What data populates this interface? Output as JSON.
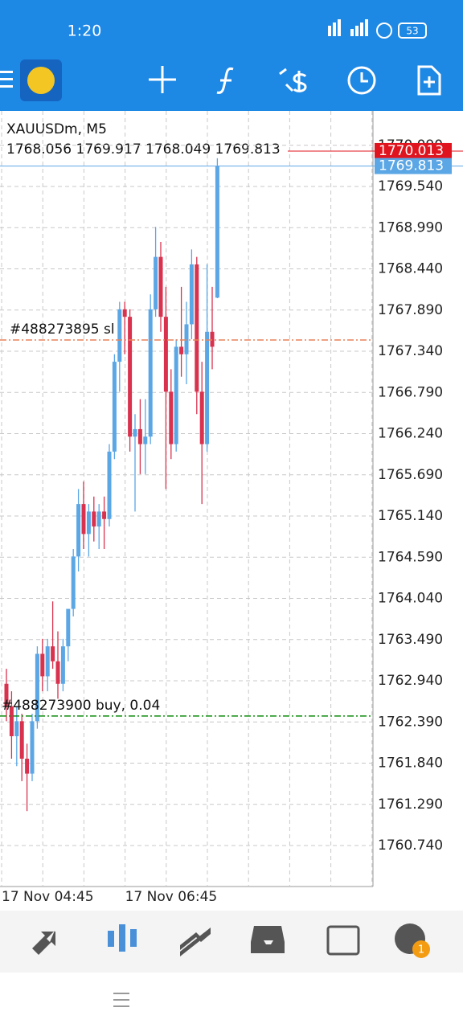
{
  "status_bar": {
    "time": "1:20",
    "battery": "53"
  },
  "chart_data": {
    "type": "candlestick",
    "title": "XAUUSDm, M5",
    "ohlc_text": "1768.056 1769.917 1768.049 1769.813",
    "categories": [
      "17 Nov 04:45",
      null,
      null,
      null,
      null,
      null,
      null,
      null,
      null,
      null,
      null,
      null,
      null,
      null,
      null,
      null,
      null,
      null,
      null,
      null,
      null,
      null,
      null,
      null,
      "17 Nov 06:45",
      null,
      null,
      null,
      null,
      null,
      null,
      null,
      null,
      null,
      null,
      null,
      null,
      null,
      null,
      null,
      null,
      null
    ],
    "open": [
      1762.9,
      1762.6,
      1762.2,
      1762.4,
      1761.9,
      1761.7,
      1762.4,
      1763.3,
      1763.0,
      1763.4,
      1763.2,
      1762.9,
      1763.4,
      1763.9,
      1764.6,
      1765.3,
      1764.9,
      1765.2,
      1765.0,
      1765.2,
      1765.1,
      1766.0,
      1767.2,
      1767.9,
      1767.8,
      1766.2,
      1766.3,
      1766.1,
      1766.2,
      1767.9,
      1768.6,
      1767.8,
      1766.8,
      1766.1,
      1767.4,
      1767.3,
      1767.7,
      1768.5,
      1766.8,
      1766.1,
      1767.6,
      1768.056
    ],
    "high": [
      1763.1,
      1762.8,
      1762.6,
      1762.5,
      1762.1,
      1762.5,
      1763.4,
      1763.5,
      1763.5,
      1764.0,
      1763.6,
      1763.5,
      1763.9,
      1764.7,
      1765.5,
      1765.6,
      1765.3,
      1765.4,
      1765.3,
      1765.4,
      1766.1,
      1767.3,
      1768.0,
      1768.0,
      1767.9,
      1766.5,
      1766.7,
      1766.7,
      1768.1,
      1769.0,
      1768.8,
      1768.2,
      1767.1,
      1767.5,
      1768.2,
      1768.0,
      1768.7,
      1768.6,
      1767.2,
      1768.5,
      1768.2,
      1769.917
    ],
    "low": [
      1762.4,
      1761.9,
      1761.8,
      1761.6,
      1761.2,
      1761.6,
      1762.3,
      1762.8,
      1762.8,
      1763.1,
      1762.7,
      1762.8,
      1763.2,
      1763.8,
      1764.4,
      1764.7,
      1764.6,
      1764.8,
      1764.7,
      1764.7,
      1765.0,
      1765.9,
      1766.8,
      1767.3,
      1766.0,
      1765.2,
      1765.7,
      1765.7,
      1766.1,
      1767.8,
      1767.6,
      1765.5,
      1765.9,
      1766.0,
      1767.0,
      1766.9,
      1767.5,
      1766.5,
      1765.3,
      1766.0,
      1767.1,
      1768.049
    ],
    "close": [
      1762.6,
      1762.2,
      1762.4,
      1761.9,
      1761.7,
      1762.4,
      1763.3,
      1763.0,
      1763.4,
      1763.2,
      1762.9,
      1763.4,
      1763.9,
      1764.6,
      1765.3,
      1764.9,
      1765.2,
      1765.0,
      1765.2,
      1765.1,
      1766.0,
      1767.2,
      1767.9,
      1767.8,
      1766.2,
      1766.3,
      1766.1,
      1766.2,
      1767.9,
      1768.6,
      1767.8,
      1766.8,
      1766.1,
      1767.4,
      1767.3,
      1767.7,
      1768.5,
      1766.8,
      1766.1,
      1767.6,
      1767.4,
      1769.813
    ],
    "up_color": "#5ba6e5",
    "down_color": "#d8324e",
    "ylim": [
      1760.193,
      1770.549
    ],
    "yticks": [
      {
        "value": 1770.09,
        "label": "1770.090"
      },
      {
        "value": 1769.54,
        "label": "1769.540"
      },
      {
        "value": 1768.99,
        "label": "1768.990"
      },
      {
        "value": 1768.44,
        "label": "1768.440"
      },
      {
        "value": 1767.89,
        "label": "1767.890"
      },
      {
        "value": 1767.34,
        "label": "1767.340"
      },
      {
        "value": 1766.79,
        "label": "1766.790"
      },
      {
        "value": 1766.24,
        "label": "1766.240"
      },
      {
        "value": 1765.69,
        "label": "1765.690"
      },
      {
        "value": 1765.14,
        "label": "1765.140"
      },
      {
        "value": 1764.59,
        "label": "1764.590"
      },
      {
        "value": 1764.04,
        "label": "1764.040"
      },
      {
        "value": 1763.49,
        "label": "1763.490"
      },
      {
        "value": 1762.94,
        "label": "1762.940"
      },
      {
        "value": 1762.39,
        "label": "1762.390"
      },
      {
        "value": 1761.84,
        "label": "1761.840"
      },
      {
        "value": 1761.29,
        "label": "1761.290"
      },
      {
        "value": 1760.74,
        "label": "1760.740"
      }
    ],
    "grid": true,
    "bid": {
      "value": 1769.813,
      "label": "1769.813",
      "color": "#5ba6e5"
    },
    "ask": {
      "value": 1770.013,
      "label": "1770.013",
      "color": "#e0141e"
    },
    "orders": [
      {
        "label": "#488273895 sl",
        "value": 1767.49,
        "color": "#e8825a"
      },
      {
        "label": "#488273900 buy, 0.04",
        "value": 1762.47,
        "color": "#0a8a0a"
      }
    ]
  },
  "bottom_nav": {
    "chat_badge": "1"
  }
}
